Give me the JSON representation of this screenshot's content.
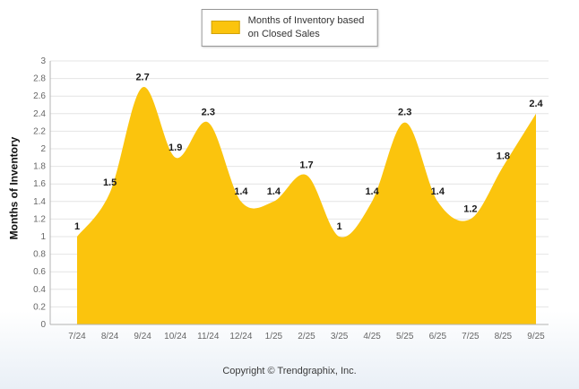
{
  "legend": {
    "label_line1": "Months of Inventory based",
    "label_line2": "on Closed Sales"
  },
  "ylabel": "Months of Inventory",
  "footer": "Copyright © Trendgraphix, Inc.",
  "colors": {
    "area": "#fbc40d",
    "area_border": "#cfa10a",
    "grid": "#e4e4e4",
    "axis": "#b3b3b3",
    "tick_text": "#666666",
    "label_text": "#1a1a1a"
  },
  "chart_data": {
    "type": "area",
    "title": "Months of Inventory based on Closed Sales",
    "categories": [
      "7/24",
      "8/24",
      "9/24",
      "10/24",
      "11/24",
      "12/24",
      "1/25",
      "2/25",
      "3/25",
      "4/25",
      "5/25",
      "6/25",
      "7/25",
      "8/25",
      "9/25"
    ],
    "values": [
      1,
      1.5,
      2.7,
      1.9,
      2.3,
      1.4,
      1.4,
      1.7,
      1,
      1.4,
      2.3,
      1.4,
      1.2,
      1.8,
      2.4
    ],
    "point_labels": [
      "1",
      "1.5",
      "2.7",
      "1.9",
      "2.3",
      "1.4",
      "1.4",
      "1.7",
      "1",
      "1.4",
      "2.3",
      "1.4",
      "1.2",
      "1.8",
      "2.4"
    ],
    "xlabel": "",
    "ylabel": "Months of Inventory",
    "ylim": [
      0,
      3
    ],
    "ytick_step": 0.2,
    "yticks": [
      "0",
      "0.2",
      "0.4",
      "0.6",
      "0.8",
      "1",
      "1.2",
      "1.4",
      "1.6",
      "1.8",
      "2",
      "2.2",
      "2.4",
      "2.6",
      "2.8",
      "3"
    ],
    "grid": true,
    "legend_position": "top-center",
    "smooth": true
  }
}
